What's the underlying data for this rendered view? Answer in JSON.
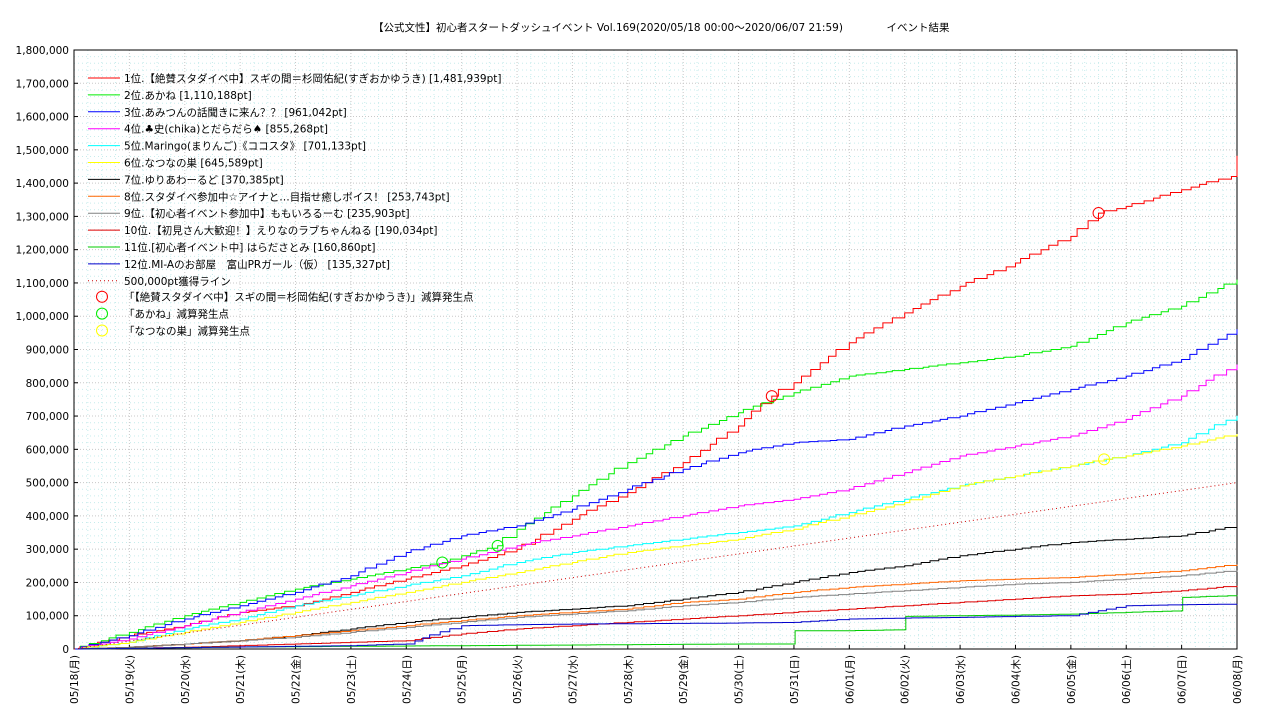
{
  "chart_data": {
    "type": "line",
    "title": "【公式文性】初心者スタートダッシュイベント Vol.169(2020/05/18 00:00〜2020/06/07 21:59)",
    "subtitle": "イベント結果",
    "ylim": [
      0,
      1800000
    ],
    "yticks": [
      "0",
      "100,000",
      "200,000",
      "300,000",
      "400,000",
      "500,000",
      "600,000",
      "700,000",
      "800,000",
      "900,000",
      "1,000,000",
      "1,100,000",
      "1,200,000",
      "1,300,000",
      "1,400,000",
      "1,500,000",
      "1,600,000",
      "1,700,000",
      "1,800,000"
    ],
    "x_domain_days": [
      0,
      21
    ],
    "xticks": [
      "05/18(月)",
      "05/19(火)",
      "05/20(水)",
      "05/21(木)",
      "05/22(金)",
      "05/23(土)",
      "05/24(日)",
      "05/25(月)",
      "05/26(火)",
      "05/27(水)",
      "05/28(木)",
      "05/29(金)",
      "05/30(土)",
      "05/31(日)",
      "06/01(月)",
      "06/02(火)",
      "06/03(水)",
      "06/04(木)",
      "06/05(金)",
      "06/06(土)",
      "06/07(日)",
      "06/08(月)"
    ],
    "grid": true,
    "legend_position": "top-left",
    "series": [
      {
        "name": "1位.【絶賛スタダイベ中】スギの間＝杉岡佑紀(すぎおかゆうき) [1,481,939pt]",
        "color": "#ff0000",
        "x": [
          0,
          1,
          2,
          3,
          4,
          5,
          6,
          7,
          8,
          9,
          10,
          11,
          12,
          12.6,
          13,
          14,
          15,
          16,
          17,
          18,
          18.5,
          19,
          20,
          20.9,
          21
        ],
        "y": [
          0,
          40000,
          70000,
          110000,
          130000,
          170000,
          210000,
          250000,
          300000,
          390000,
          470000,
          560000,
          670000,
          760000,
          800000,
          920000,
          1010000,
          1090000,
          1160000,
          1240000,
          1310000,
          1330000,
          1380000,
          1420000,
          1482000
        ]
      },
      {
        "name": "2位.あかね [1,110,188pt]",
        "color": "#00ee00",
        "x": [
          0,
          1,
          2,
          3,
          4,
          5,
          6,
          6.65,
          7,
          7.65,
          8,
          9,
          10,
          11,
          12,
          13,
          14,
          15,
          16,
          17,
          18,
          19,
          20,
          21
        ],
        "y": [
          0,
          50000,
          100000,
          140000,
          180000,
          210000,
          240000,
          260000,
          280000,
          310000,
          360000,
          460000,
          560000,
          640000,
          710000,
          770000,
          820000,
          840000,
          860000,
          880000,
          910000,
          980000,
          1030000,
          1110000
        ]
      },
      {
        "name": "3位.あみつんの話聞きに来ん？？ [961,042pt]",
        "color": "#0000ff",
        "x": [
          0,
          1,
          2,
          3,
          4,
          5,
          6,
          7,
          8,
          9,
          10,
          11,
          12,
          13,
          14,
          15,
          16,
          17,
          18,
          19,
          20,
          21
        ],
        "y": [
          0,
          40000,
          90000,
          130000,
          170000,
          220000,
          290000,
          340000,
          370000,
          420000,
          480000,
          540000,
          590000,
          620000,
          630000,
          670000,
          700000,
          740000,
          780000,
          820000,
          870000,
          961000
        ]
      },
      {
        "name": "4位.♣史(chika)とだらだら♠ [855,268pt]",
        "color": "#ff00ff",
        "x": [
          0,
          1,
          2,
          3,
          4,
          5,
          6,
          7,
          8,
          9,
          10,
          11,
          12,
          13,
          14,
          15,
          16,
          17,
          18,
          19,
          20,
          21
        ],
        "y": [
          0,
          30000,
          70000,
          110000,
          150000,
          190000,
          230000,
          270000,
          310000,
          340000,
          370000,
          400000,
          430000,
          450000,
          480000,
          530000,
          580000,
          610000,
          640000,
          690000,
          760000,
          855000
        ]
      },
      {
        "name": "5位.Maringo(まりんご)《ココスタ》 [701,133pt]",
        "color": "#00ffff",
        "x": [
          0,
          1,
          2,
          3,
          4,
          5,
          6,
          7,
          8,
          9,
          10,
          11,
          12,
          13,
          14,
          15,
          16,
          17,
          18,
          19,
          20,
          21
        ],
        "y": [
          0,
          20000,
          60000,
          90000,
          130000,
          160000,
          190000,
          220000,
          260000,
          290000,
          310000,
          330000,
          350000,
          370000,
          410000,
          450000,
          490000,
          520000,
          550000,
          580000,
          620000,
          701000
        ]
      },
      {
        "name": "6位.なつなの巣 [645,589pt]",
        "color": "#ffff00",
        "x": [
          0,
          1,
          2,
          3,
          4,
          5,
          6,
          7,
          8,
          9,
          10,
          11,
          12,
          13,
          14,
          15,
          16,
          17,
          18,
          18.6,
          19,
          20,
          21
        ],
        "y": [
          0,
          20000,
          50000,
          80000,
          110000,
          140000,
          170000,
          200000,
          230000,
          260000,
          290000,
          310000,
          330000,
          360000,
          400000,
          440000,
          490000,
          520000,
          550000,
          570000,
          580000,
          610000,
          646000
        ]
      },
      {
        "name": "7位.ゆりあわーるど [370,385pt]",
        "color": "#000000",
        "x": [
          0,
          1,
          2,
          3,
          4,
          5,
          6,
          7,
          8,
          9,
          10,
          11,
          12,
          13,
          14,
          15,
          16,
          17,
          18,
          19,
          20,
          21
        ],
        "y": [
          0,
          5000,
          15000,
          25000,
          40000,
          60000,
          80000,
          95000,
          110000,
          120000,
          130000,
          150000,
          170000,
          200000,
          230000,
          250000,
          280000,
          300000,
          320000,
          330000,
          340000,
          370000
        ]
      },
      {
        "name": "8位.スタダイベ参加中☆アイナと…目指せ癒しボイス！ [253,743pt]",
        "color": "#ff6600",
        "x": [
          0,
          1,
          2,
          3,
          4,
          5,
          6,
          7,
          8,
          9,
          10,
          11,
          12,
          13,
          14,
          15,
          16,
          17,
          18,
          19,
          20,
          21
        ],
        "y": [
          0,
          5000,
          15000,
          25000,
          40000,
          55000,
          70000,
          85000,
          100000,
          110000,
          120000,
          140000,
          150000,
          170000,
          185000,
          195000,
          205000,
          210000,
          215000,
          225000,
          235000,
          254000
        ]
      },
      {
        "name": "9位.【初心者イベント参加中】ももいろるーむ [235,903pt]",
        "color": "#808080",
        "x": [
          0,
          1,
          2,
          3,
          4,
          5,
          6,
          7,
          8,
          9,
          10,
          11,
          12,
          13,
          14,
          15,
          16,
          17,
          18,
          19,
          20,
          21
        ],
        "y": [
          0,
          5000,
          15000,
          25000,
          35000,
          50000,
          65000,
          80000,
          95000,
          105000,
          115000,
          130000,
          140000,
          155000,
          165000,
          175000,
          185000,
          195000,
          200000,
          210000,
          220000,
          236000
        ]
      },
      {
        "name": "10位.【初見さん大歓迎！】えりなのラブちゃんねる [190,034pt]",
        "color": "#dd0000",
        "x": [
          0,
          1,
          2,
          3,
          4,
          5,
          6,
          7,
          8,
          9,
          10,
          11,
          12,
          13,
          14,
          15,
          16,
          17,
          18,
          19,
          20,
          21
        ],
        "y": [
          0,
          2000,
          5000,
          10000,
          15000,
          20000,
          25000,
          45000,
          60000,
          70000,
          80000,
          90000,
          100000,
          110000,
          120000,
          130000,
          140000,
          150000,
          160000,
          165000,
          175000,
          190000
        ]
      },
      {
        "name": "11位.[初心者イベント中] はらださとみ [160,860pt]",
        "color": "#00cc00",
        "x": [
          0,
          1,
          2,
          3,
          4,
          5,
          6,
          7,
          8,
          9,
          10,
          11,
          12,
          13,
          13.02,
          14,
          15,
          15.02,
          16,
          17,
          18,
          19,
          20,
          20.02,
          21
        ],
        "y": [
          0,
          2000,
          4000,
          6000,
          7000,
          8000,
          9000,
          10000,
          11000,
          12000,
          13000,
          14000,
          15000,
          15000,
          55000,
          55000,
          58000,
          98000,
          100000,
          102000,
          105000,
          110000,
          115000,
          155000,
          161000
        ]
      },
      {
        "name": "12位.MI-Aのお部屋　富山PRガール（仮） [135,327pt]",
        "color": "#0000cc",
        "x": [
          0,
          1,
          2,
          3,
          4,
          5,
          6,
          7,
          8,
          9,
          10,
          11,
          12,
          13,
          14,
          15,
          16,
          17,
          18,
          19,
          20,
          21
        ],
        "y": [
          0,
          2000,
          4000,
          6000,
          8000,
          10000,
          15000,
          70000,
          73000,
          75000,
          76000,
          77000,
          78000,
          80000,
          90000,
          93000,
          95000,
          98000,
          100000,
          130000,
          133000,
          135000
        ]
      },
      {
        "name": "500,000pt獲得ライン",
        "color": "#cc0000",
        "dotted": true,
        "x": [
          0,
          21
        ],
        "y": [
          0,
          500000
        ]
      }
    ],
    "markers": [
      {
        "name": "「【絶賛スタダイベ中】スギの間＝杉岡佑紀(すぎおかゆうき)」減算発生点",
        "color": "#ff0000",
        "points": [
          {
            "x": 12.6,
            "y": 760000
          },
          {
            "x": 18.5,
            "y": 1310000
          }
        ]
      },
      {
        "name": "「あかね」減算発生点",
        "color": "#00ee00",
        "points": [
          {
            "x": 6.65,
            "y": 260000
          },
          {
            "x": 7.65,
            "y": 310000
          }
        ]
      },
      {
        "name": "「なつなの巣」減算発生点",
        "color": "#ffff00",
        "points": [
          {
            "x": 18.6,
            "y": 570000
          }
        ]
      }
    ]
  }
}
